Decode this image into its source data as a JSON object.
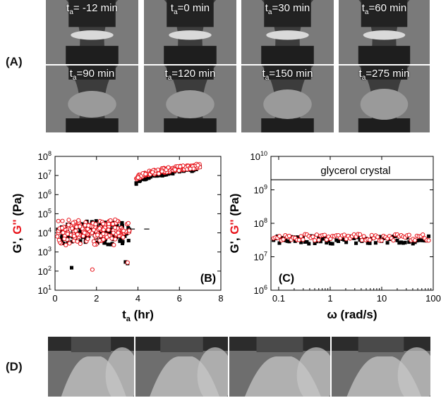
{
  "panels": {
    "A": "(A)",
    "B": "(B)",
    "C": "(C)",
    "D": "(D)"
  },
  "photos_A": [
    {
      "sub": "a",
      "text": "= -12 min"
    },
    {
      "sub": "a",
      "text": "=0 min"
    },
    {
      "sub": "a",
      "text": "=30 min"
    },
    {
      "sub": "a",
      "text": "=60 min"
    },
    {
      "sub": "a",
      "text": "=90 min"
    },
    {
      "sub": "a",
      "text": "=120 min"
    },
    {
      "sub": "a",
      "text": "=150 min"
    },
    {
      "sub": "a",
      "text": "=275 min"
    }
  ],
  "chart_data": [
    {
      "type": "scatter",
      "panel": "(B)",
      "xlabel_main": "t",
      "xlabel_sub": "a",
      "xlabel_unit": " (hr)",
      "ylabel_parts": [
        "G', ",
        "G''",
        " (Pa)"
      ],
      "ylabel_colors": [
        "#000000",
        "#e8141b",
        "#000000"
      ],
      "xlim": [
        0,
        8
      ],
      "ylim_log10": [
        1,
        8
      ],
      "x_ticks": [
        "0",
        "2",
        "4",
        "6",
        "8"
      ],
      "y_ticks_exp": [
        "1",
        "2",
        "3",
        "4",
        "5",
        "6",
        "7",
        "8"
      ],
      "series": [
        {
          "marker": "filled-square",
          "color": "#000000",
          "low_phase": {
            "x_range": [
              0.1,
              3.6
            ],
            "log10_y_center": 4.0,
            "log10_y_spread": 0.7
          },
          "outliers": [
            [
              0.8,
              150
            ],
            [
              3.4,
              300
            ],
            [
              3.5,
              250
            ]
          ],
          "high_phase": {
            "x_range": [
              3.9,
              7.0
            ],
            "log10_y_start": 6.6,
            "log10_y_end": 7.4
          }
        },
        {
          "marker": "open-circle",
          "color": "#e8141b",
          "low_phase": {
            "x_range": [
              0.1,
              3.6
            ],
            "log10_y_center": 4.05,
            "log10_y_spread": 0.75
          },
          "outliers": [
            [
              1.8,
              120
            ],
            [
              3.5,
              280
            ]
          ],
          "high_phase": {
            "x_range": [
              3.9,
              7.0
            ],
            "log10_y_start": 6.8,
            "log10_y_end": 7.5
          }
        }
      ]
    },
    {
      "type": "scatter",
      "panel": "(C)",
      "xlabel": "ω (rad/s)",
      "ylabel_parts": [
        "G', ",
        "G''",
        " (Pa)"
      ],
      "ylabel_colors": [
        "#000000",
        "#e8141b",
        "#000000"
      ],
      "xlim_log10": [
        -1.15,
        2
      ],
      "ylim_log10": [
        6,
        10
      ],
      "x_ticks": [
        "0.1",
        "1",
        "10",
        "100"
      ],
      "y_ticks_exp": [
        "6",
        "7",
        "8",
        "9",
        "10"
      ],
      "reference_line": {
        "label": "glycerol crystal",
        "value": 2000000000
      },
      "series": [
        {
          "marker": "filled-square",
          "color": "#000000",
          "log10_y_center": 7.5,
          "log10_y_spread": 0.12
        },
        {
          "marker": "open-circle",
          "color": "#e8141b",
          "log10_y_center": 7.58,
          "log10_y_spread": 0.1
        }
      ]
    }
  ]
}
